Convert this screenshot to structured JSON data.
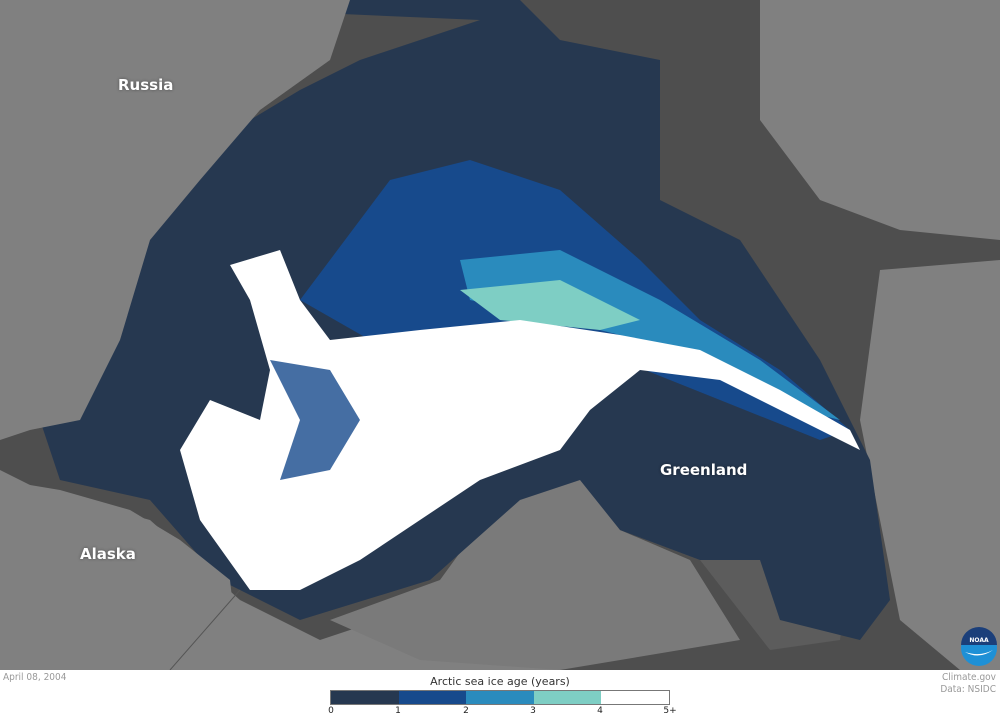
{
  "map": {
    "labels": {
      "russia": "Russia",
      "alaska": "Alaska",
      "greenland": "Greenland"
    },
    "colors": {
      "land": "#808080",
      "greenland": "#5c5c5c",
      "open_ocean": "#4e4e4e"
    }
  },
  "footer": {
    "date": "April 08, 2004",
    "credit": "Climate.gov",
    "source": "Data: NSIDC",
    "logo": "NOAA"
  },
  "legend": {
    "title": "Arctic sea ice age (years)",
    "ticks": [
      "0",
      "1",
      "2",
      "3",
      "4",
      "5+"
    ],
    "colors": [
      "#263850",
      "#174a8c",
      "#2a8bbd",
      "#7ecec4",
      "#ffffff"
    ]
  }
}
